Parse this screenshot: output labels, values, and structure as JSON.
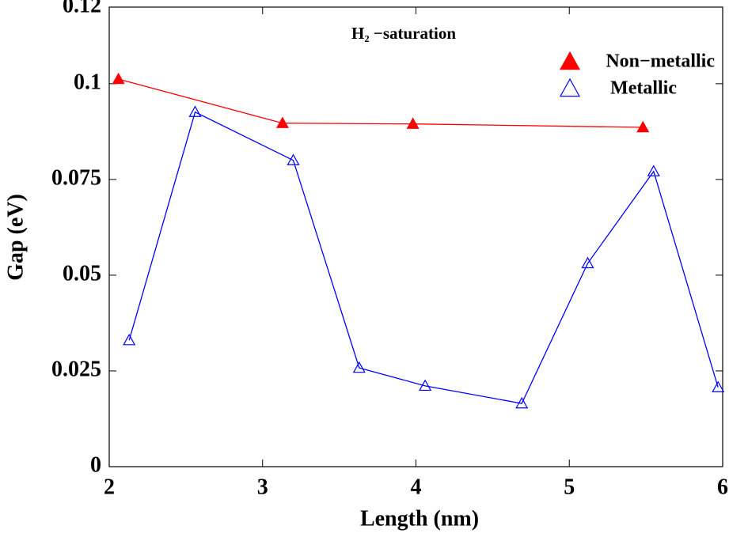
{
  "chart_data": {
    "type": "line",
    "xlabel": "Length (nm)",
    "ylabel": "Gap (eV)",
    "annotation": "H₂ −saturation",
    "xlim": [
      2,
      6
    ],
    "xticks": [
      2,
      3,
      4,
      5,
      6
    ],
    "ylim": [
      0,
      0.12
    ],
    "yticks": [
      0,
      0.025,
      0.05,
      0.075,
      0.1,
      0.12
    ],
    "legend": "upper right",
    "series": [
      {
        "name": "Non−metallic",
        "color": "#ff0000",
        "marker": "filled-triangle",
        "x": [
          2.06,
          3.13,
          3.98,
          5.48
        ],
        "values": [
          0.1012,
          0.0897,
          0.0895,
          0.0886
        ]
      },
      {
        "name": "Metallic",
        "color": "#0000ff",
        "marker": "open-triangle",
        "x": [
          2.13,
          2.56,
          3.2,
          3.63,
          4.06,
          4.69,
          5.12,
          5.55,
          5.97
        ],
        "values": [
          0.033,
          0.0926,
          0.08,
          0.0258,
          0.0211,
          0.0165,
          0.0531,
          0.0771,
          0.0207
        ]
      }
    ]
  }
}
